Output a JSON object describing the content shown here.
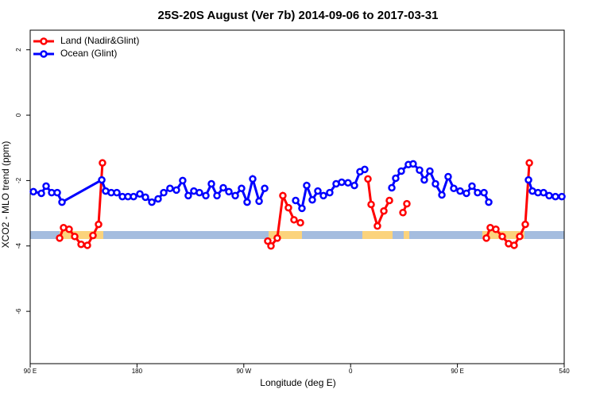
{
  "chart_data": {
    "type": "line",
    "title": "25S-20S August (Ver 7b)   2014-09-06 to 2017-03-31",
    "x_label": "Longitude (deg E)",
    "y_label": "XCO2 - MLO trend (ppm)",
    "xlim": [
      90,
      540
    ],
    "ylim": [
      -7.6,
      2.6
    ],
    "xticks": [
      {
        "value": 90,
        "label": "90 E"
      },
      180,
      {
        "value": 270,
        "label": "90 W"
      },
      {
        "value": 360,
        "label": "0"
      },
      {
        "value": 450,
        "label": "90 E"
      },
      540
    ],
    "yticks": [
      2,
      0,
      -2,
      -4,
      -6
    ],
    "legend": "top-left",
    "series": [
      {
        "name": "Land (Nadir&Glint)",
        "color": "#ff0000",
        "x": [
          114.8,
          118.1,
          122.8,
          127.5,
          132.9,
          138.2,
          142.9,
          147.6,
          150.9,
          200,
          290.2,
          292.9,
          298.2,
          302.9,
          307.6,
          312.3,
          317.7,
          340,
          374.6,
          377.3,
          382.6,
          388.0,
          392.7,
          396,
          404.1,
          407.4,
          450,
          474.4,
          477.7,
          482.4,
          487.8,
          493.1,
          497.8,
          502.5,
          507.2,
          510.6
        ],
        "values": [
          -3.76,
          -3.44,
          -3.49,
          -3.71,
          -3.95,
          -3.98,
          -3.68,
          -3.34,
          -1.46,
          null,
          -3.85,
          -4.0,
          -3.76,
          -2.46,
          -2.83,
          -3.2,
          -3.29,
          null,
          -1.95,
          -2.73,
          -3.39,
          -2.93,
          -2.61,
          null,
          -2.98,
          -2.71,
          null,
          -3.76,
          -3.44,
          -3.49,
          -3.71,
          -3.93,
          -3.98,
          -3.71,
          -3.34,
          -1.46
        ]
      },
      {
        "name": "Ocean (Glint)",
        "color": "#0000ff",
        "x": [
          92.7,
          99.4,
          103.4,
          108.1,
          112.8,
          116.8,
          150.3,
          153.6,
          158.3,
          163.0,
          167.7,
          172.4,
          177.1,
          182.4,
          187.1,
          192.5,
          197.8,
          202.5,
          207.8,
          213.2,
          218.5,
          223.2,
          227.9,
          232.6,
          238.0,
          242.7,
          247.4,
          252.7,
          257.4,
          262.8,
          268.1,
          272.8,
          277.5,
          282.9,
          287.6,
          300,
          313.7,
          319.0,
          323.0,
          327.7,
          332.4,
          337.1,
          342.4,
          347.8,
          352.5,
          357.8,
          363.2,
          367.9,
          371.9,
          383,
          394.7,
          398.0,
          402.7,
          408.7,
          412.7,
          418.1,
          422.1,
          426.8,
          431.5,
          436.9,
          442.2,
          446.9,
          452.3,
          457.6,
          462.3,
          467.0,
          472.4,
          476.4,
          493,
          509.9,
          513.2,
          517.9,
          522.6,
          527.3,
          532.6,
          538.0
        ],
        "values": [
          -2.34,
          -2.39,
          -2.17,
          -2.37,
          -2.37,
          -2.66,
          -1.98,
          -2.32,
          -2.37,
          -2.37,
          -2.49,
          -2.49,
          -2.49,
          -2.41,
          -2.51,
          -2.66,
          -2.56,
          -2.37,
          -2.24,
          -2.29,
          -2.0,
          -2.46,
          -2.32,
          -2.37,
          -2.46,
          -2.1,
          -2.46,
          -2.22,
          -2.34,
          -2.46,
          -2.24,
          -2.66,
          -1.95,
          -2.63,
          -2.24,
          null,
          -2.61,
          -2.85,
          -2.15,
          -2.59,
          -2.32,
          -2.46,
          -2.37,
          -2.1,
          -2.05,
          -2.07,
          -2.15,
          -1.73,
          -1.66,
          null,
          -2.22,
          -1.93,
          -1.71,
          -1.51,
          -1.49,
          -1.68,
          -1.98,
          -1.71,
          -2.1,
          -2.44,
          -1.88,
          -2.24,
          -2.32,
          -2.39,
          -2.17,
          -2.37,
          -2.37,
          -2.66,
          null,
          -1.98,
          -2.32,
          -2.37,
          -2.37,
          -2.46,
          -2.49,
          -2.49
        ]
      }
    ]
  }
}
